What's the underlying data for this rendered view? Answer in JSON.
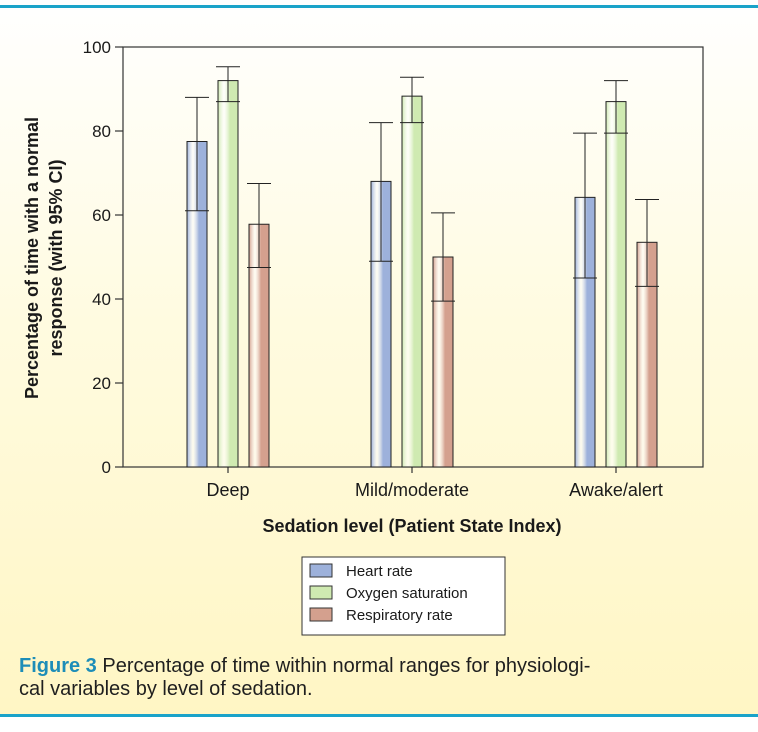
{
  "colors": {
    "accent_rule": "#1aa3c9",
    "caption_label": "#1d8db8"
  },
  "chart_data": {
    "type": "bar",
    "categories": [
      "Deep",
      "Mild/moderate",
      "Awake/alert"
    ],
    "series": [
      {
        "name": "Heart rate",
        "color": "#9db1db",
        "values": [
          77.5,
          68,
          64.2
        ],
        "ci_low": [
          61,
          49,
          45
        ],
        "ci_high": [
          88,
          82,
          79.5
        ]
      },
      {
        "name": "Oxygen saturation",
        "color": "#cfeab1",
        "values": [
          92,
          88.3,
          87
        ],
        "ci_low": [
          87,
          82,
          79.5
        ],
        "ci_high": [
          95.3,
          92.8,
          92
        ]
      },
      {
        "name": "Respiratory rate",
        "color": "#d4a08e",
        "values": [
          57.8,
          50,
          53.5
        ],
        "ci_low": [
          47.5,
          39.5,
          43
        ],
        "ci_high": [
          67.5,
          60.5,
          63.7
        ]
      }
    ],
    "ylim": [
      0,
      100
    ],
    "yticks": [
      "0",
      "20",
      "40",
      "60",
      "80",
      "100"
    ],
    "xlabel": "Sedation level (Patient State Index)",
    "ylabel_line1": "Percentage of time with a normal",
    "ylabel_line2": "response (with 95% CI)",
    "grid": false,
    "legend_position": "bottom-center"
  },
  "caption": {
    "label": "Figure 3",
    "line1": "Percentage of time within normal ranges for physiologi-",
    "line2": "cal variables by level of sedation."
  }
}
